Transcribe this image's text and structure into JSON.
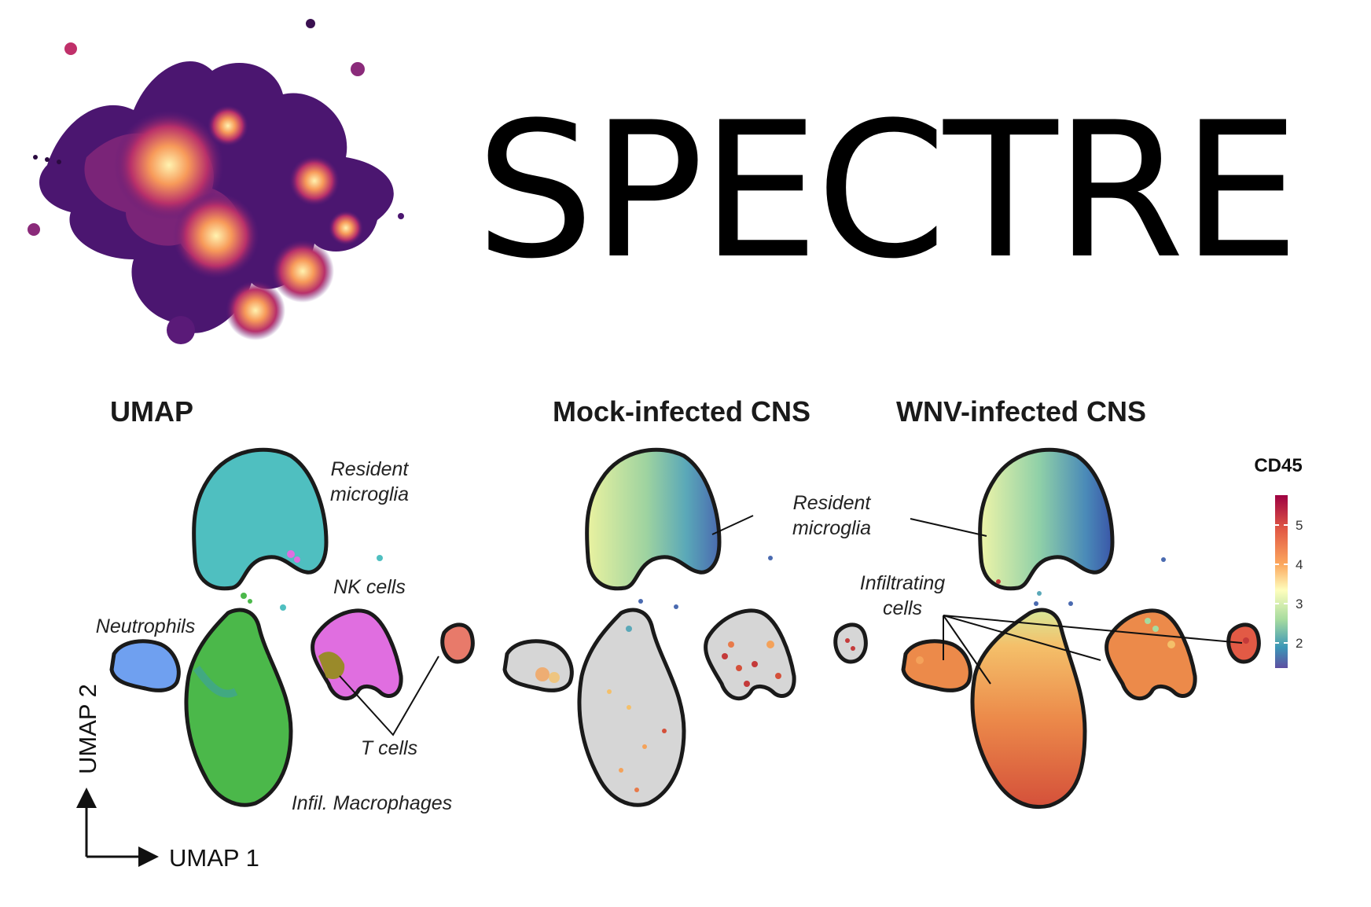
{
  "logo": {
    "title": "SPECTRE"
  },
  "panels": {
    "umap": {
      "title": "UMAP"
    },
    "mock": {
      "title": "Mock-infected CNS"
    },
    "wnv": {
      "title": "WNV-infected CNS"
    }
  },
  "annotations": {
    "resident_microglia_1": "Resident",
    "resident_microglia_2": "microglia",
    "nk_cells": "NK cells",
    "neutrophils": "Neutrophils",
    "t_cells": "T cells",
    "infil_macrophages": "Infil. Macrophages",
    "resident_microglia_b1": "Resident",
    "resident_microglia_b2": "microglia",
    "infiltrating_1": "Infiltrating",
    "infiltrating_2": "cells"
  },
  "axes": {
    "x_label": "UMAP 1",
    "y_label": "UMAP 2"
  },
  "colorbar": {
    "title": "CD45",
    "ticks": [
      "5",
      "4",
      "3",
      "2"
    ]
  },
  "colors": {
    "microglia": "#4fbfc0",
    "macrophages": "#4bb84a",
    "nk": "#e06ee0",
    "neutrophils": "#6fa0f0",
    "tcells": "#9a8a2a",
    "salmon": "#e87a6a",
    "outline": "#1a1a1a",
    "fill_gray": "#d6d6d6"
  }
}
